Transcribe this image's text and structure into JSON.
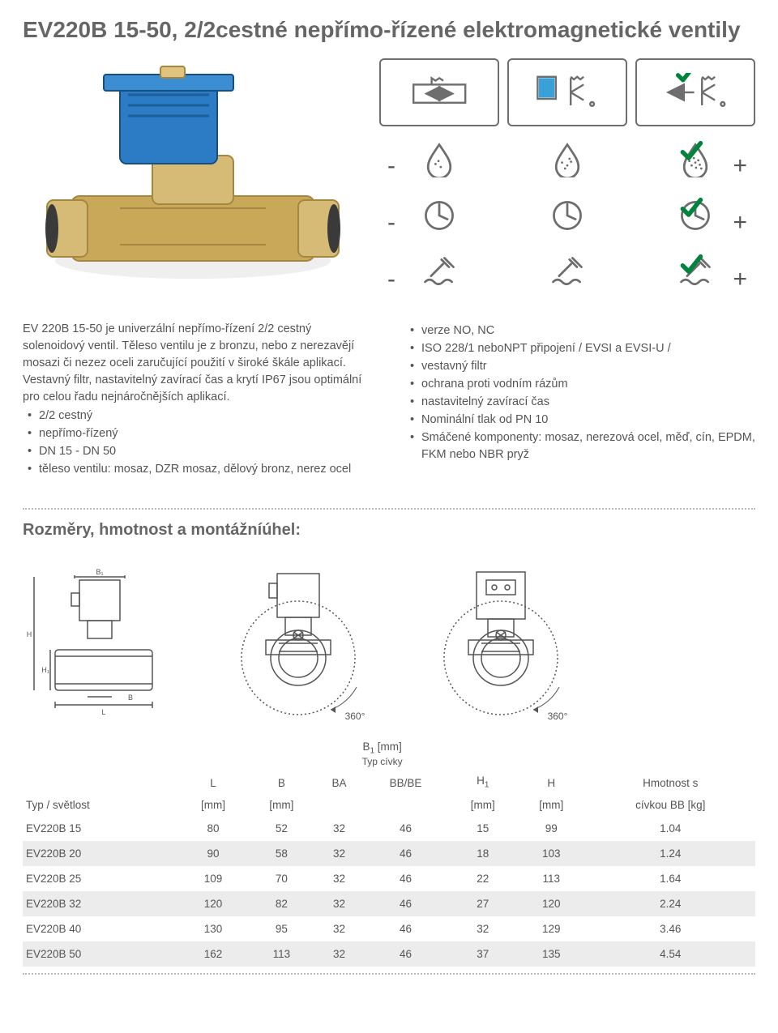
{
  "title": "EV220B 15-50, 2/2cestné nepřímo-řízené elektromagnetické ventily",
  "intro_left_paragraph": "EV 220B 15-50 je univerzální nepřímo-řízení 2/2 cestný solenoidový ventil. Těleso ventilu je z bronzu, nebo z nerezavějí mosazi či nezez oceli zaručující použití v široké škále aplikací. Vestavný filtr, nastavitelný zavírací čas a krytí IP67 jsou optimální pro celou řadu nejnáročnějších aplikací.",
  "bullets_left": [
    "2/2 cestný",
    "nepřímo-řízený",
    "DN 15 - DN 50",
    "těleso ventilu: mosaz, DZR mosaz, dělový bronz, nerez ocel"
  ],
  "bullets_right": [
    "verze NO, NC",
    "ISO 228/1 neboNPT připojení / EVSI a EVSI-U /",
    "vestavný filtr",
    "ochrana proti vodním rázům",
    "nastavitelný zavírací čas",
    "Nominální tlak od PN 10",
    "Smáčené komponenty: mosaz, nerezová ocel, měď, cín, EPDM, FKM nebo NBR pryž"
  ],
  "section2_title": "Rozměry, hmotnost a montážníúhel:",
  "drawing_angle": "360°",
  "table": {
    "head": {
      "col1": "Typ / světlost",
      "L": "L",
      "B": "B",
      "B1": "B",
      "B1_sub": "1",
      "unit_mm": "[mm]",
      "coil_type": "Typ cívky",
      "BA": "BA",
      "BBBE": "BB/BE",
      "H1": "H",
      "H1_sub": "1",
      "H": "H",
      "weight_line1": "Hmotnost s",
      "weight_line2": "cívkou BB [kg]"
    },
    "rows": [
      {
        "name": "EV220B 15",
        "L": "80",
        "B": "52",
        "BA": "32",
        "BBBE": "46",
        "H1": "15",
        "H": "99",
        "W": "1.04"
      },
      {
        "name": "EV220B 20",
        "L": "90",
        "B": "58",
        "BA": "32",
        "BBBE": "46",
        "H1": "18",
        "H": "103",
        "W": "1.24"
      },
      {
        "name": "EV220B 25",
        "L": "109",
        "B": "70",
        "BA": "32",
        "BBBE": "46",
        "H1": "22",
        "H": "113",
        "W": "1.64"
      },
      {
        "name": "EV220B 32",
        "L": "120",
        "B": "82",
        "BA": "32",
        "BBBE": "46",
        "H1": "27",
        "H": "120",
        "W": "2.24"
      },
      {
        "name": "EV220B 40",
        "L": "130",
        "B": "95",
        "BA": "32",
        "BBBE": "46",
        "H1": "32",
        "H": "129",
        "W": "3.46"
      },
      {
        "name": "EV220B 50",
        "L": "162",
        "B": "113",
        "BA": "32",
        "BBBE": "46",
        "H1": "37",
        "H": "135",
        "W": "4.54"
      }
    ]
  },
  "colors": {
    "stroke": "#6e6e6e",
    "check_green": "#00843d",
    "coil_blue": "#2b7cc4",
    "brass": "#c9a959",
    "brass_dark": "#a6873f",
    "water_blue": "#3aa0d8"
  }
}
